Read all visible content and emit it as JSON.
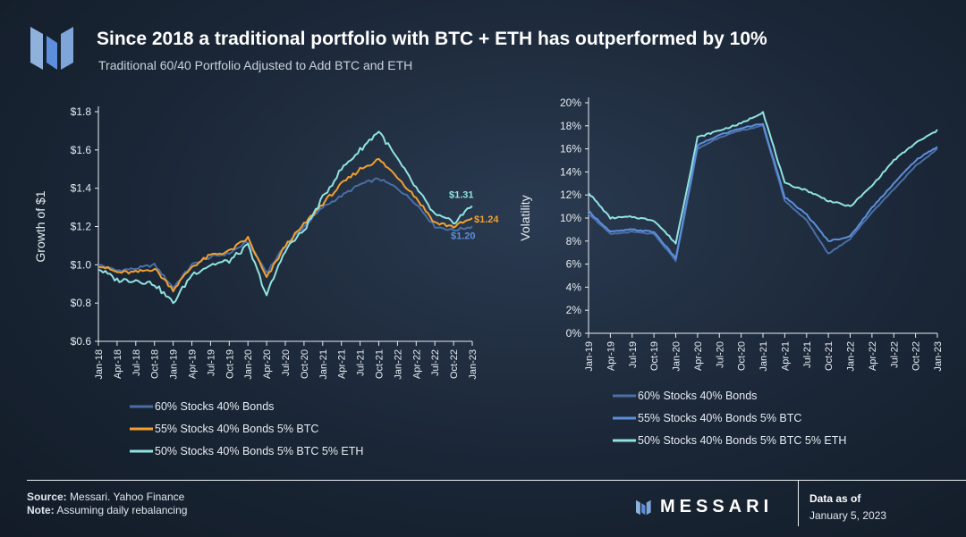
{
  "header": {
    "title": "Since 2018 a traditional portfolio with BTC + ETH has outperformed by 10%",
    "subtitle": "Traditional 60/40 Portfolio Adjusted to Add BTC and ETH"
  },
  "colors": {
    "series1": "#4a6fa5",
    "series2": "#f2a030",
    "series3": "#8fe3e0",
    "vol1": "#4a6fa5",
    "vol2": "#5d8fdc",
    "vol3": "#8fe3e0",
    "axis": "#e8eef4",
    "text": "#e6ecf2"
  },
  "chart_data": [
    {
      "type": "line",
      "ylabel": "Growth of $1",
      "ylim": [
        0.6,
        1.8
      ],
      "yticks": [
        "$0.6",
        "$0.8",
        "$1.0",
        "$1.2",
        "$1.4",
        "$1.6",
        "$1.8"
      ],
      "xticks": [
        "Jan-18",
        "Apr-18",
        "Jul-18",
        "Oct-18",
        "Jan-19",
        "Apr-19",
        "Jul-19",
        "Oct-19",
        "Jan-20",
        "Apr-20",
        "Jul-20",
        "Oct-20",
        "Jan-21",
        "Apr-21",
        "Jul-21",
        "Oct-21",
        "Jan-22",
        "Apr-22",
        "Jul-22",
        "Oct-22",
        "Jan-23"
      ],
      "series": [
        {
          "name": "60% Stocks 40% Bonds",
          "values": [
            1.0,
            0.97,
            0.98,
            1.0,
            0.88,
            1.0,
            1.04,
            1.06,
            1.12,
            0.96,
            1.1,
            1.2,
            1.3,
            1.36,
            1.42,
            1.45,
            1.4,
            1.32,
            1.2,
            1.18,
            1.2
          ]
        },
        {
          "name": "55% Stocks 40% Bonds 5% BTC",
          "values": [
            1.0,
            0.96,
            0.96,
            0.98,
            0.87,
            0.99,
            1.05,
            1.07,
            1.14,
            0.93,
            1.1,
            1.21,
            1.32,
            1.42,
            1.5,
            1.55,
            1.46,
            1.35,
            1.22,
            1.2,
            1.24
          ]
        },
        {
          "name": "50% Stocks 40% Bonds 5% BTC 5% ETH",
          "values": [
            0.98,
            0.92,
            0.92,
            0.9,
            0.8,
            0.95,
            1.0,
            1.02,
            1.1,
            0.84,
            1.08,
            1.18,
            1.35,
            1.5,
            1.6,
            1.7,
            1.55,
            1.4,
            1.26,
            1.22,
            1.31
          ]
        }
      ],
      "end_labels": [
        "$1.20",
        "$1.24",
        "$1.31"
      ]
    },
    {
      "type": "line",
      "ylabel": "Volatility",
      "ylim": [
        0,
        20
      ],
      "yticks": [
        "0%",
        "2%",
        "4%",
        "6%",
        "8%",
        "10%",
        "12%",
        "14%",
        "16%",
        "18%",
        "20%"
      ],
      "xticks": [
        "Jan-19",
        "Apr-19",
        "Jul-19",
        "Oct-19",
        "Jan-20",
        "Apr-20",
        "Jul-20",
        "Oct-20",
        "Jan-21",
        "Apr-21",
        "Jul-21",
        "Oct-21",
        "Jan-22",
        "Apr-22",
        "Jul-22",
        "Oct-22",
        "Jan-23"
      ],
      "series": [
        {
          "name": "60% Stocks 40% Bonds",
          "values": [
            10.4,
            8.6,
            8.8,
            8.6,
            6.3,
            16.0,
            17.0,
            17.6,
            18.0,
            11.5,
            9.8,
            6.9,
            8.2,
            10.5,
            12.5,
            14.5,
            16.0
          ]
        },
        {
          "name": "55% Stocks 40% Bonds 5% BTC",
          "values": [
            10.6,
            8.8,
            9.0,
            8.8,
            6.5,
            16.3,
            17.2,
            17.8,
            18.2,
            11.8,
            10.3,
            8.0,
            8.4,
            10.9,
            13.0,
            15.0,
            16.2
          ]
        },
        {
          "name": "50% Stocks 40% Bonds 5% BTC 5% ETH",
          "values": [
            12.2,
            10.0,
            10.1,
            9.8,
            7.8,
            17.0,
            17.6,
            18.2,
            19.2,
            13.0,
            12.4,
            11.5,
            11.0,
            12.8,
            15.0,
            16.5,
            17.6
          ]
        }
      ]
    }
  ],
  "legend_left": [
    "60% Stocks 40% Bonds",
    "55% Stocks 40% Bonds 5% BTC",
    "50% Stocks 40% Bonds 5% BTC 5% ETH"
  ],
  "legend_right": [
    "60% Stocks 40% Bonds",
    "55% Stocks 40% Bonds 5% BTC",
    "50% Stocks 40% Bonds 5% BTC 5% ETH"
  ],
  "footer": {
    "source_label": "Source:",
    "source_text": " Messari. Yahoo Finance",
    "note_label": "Note:",
    "note_text": " Assuming daily rebalancing",
    "brand": "MESSARI",
    "asof_label": "Data as of",
    "asof_date": "January 5, 2023"
  }
}
